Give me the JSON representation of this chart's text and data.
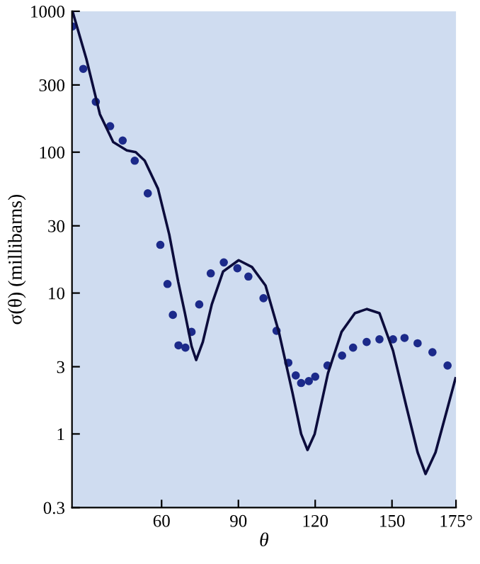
{
  "chart_data": {
    "type": "scatter",
    "xlabel": "θ",
    "ylabel": "σ(θ) (millibarns)",
    "log": "y",
    "grid": false,
    "legend": false,
    "xlim": [
      25,
      175
    ],
    "xticks": [
      60,
      90,
      120,
      150,
      {
        "value": 175,
        "label": "175°"
      }
    ],
    "ylim": [
      0.3,
      1000
    ],
    "yticks": [
      0.3,
      1,
      3,
      10,
      30,
      100,
      300,
      1000
    ],
    "series": [
      {
        "marker": "circle",
        "color": "#1c2a8a",
        "x": [
          25.1,
          29.4,
          34.3,
          39.9,
          44.8,
          49.5,
          54.6,
          59.5,
          62.3,
          64.4,
          66.6,
          69.3,
          71.7,
          74.7,
          79.2,
          84.3,
          89.6,
          93.9,
          99.8,
          104.9,
          109.5,
          112.4,
          114.5,
          117.5,
          120,
          124.8,
          130.5,
          134.8,
          140.1,
          145.1,
          150.4,
          154.9,
          160,
          165.8,
          171.7
        ],
        "values": [
          780,
          390,
          228,
          153,
          121,
          87,
          51,
          22,
          11.6,
          7.0,
          4.25,
          4.1,
          5.3,
          8.3,
          13.8,
          16.5,
          15,
          13.1,
          9.2,
          5.4,
          3.2,
          2.6,
          2.3,
          2.37,
          2.55,
          3.06,
          3.6,
          4.1,
          4.5,
          4.7,
          4.7,
          4.8,
          4.4,
          3.8,
          3.06
        ]
      },
      {
        "type": "line",
        "marker": "none",
        "line_style": "solid",
        "color": "#0c0c3c",
        "x": [
          25.2,
          30.6,
          35.9,
          41.1,
          46.4,
          49.9,
          53.4,
          58.6,
          63,
          66.5,
          69.1,
          71.7,
          73.5,
          76.1,
          79.6,
          84,
          90.1,
          95.3,
          100.6,
          105.8,
          111.1,
          114.5,
          117,
          119.8,
          125,
          130.3,
          135.5,
          140.2,
          145.1,
          150.4,
          155.6,
          160,
          163.1,
          167,
          171.4,
          174.8
        ],
        "values": [
          1000,
          460,
          186,
          118,
          103,
          100,
          87,
          55,
          26,
          12,
          7.2,
          4.2,
          3.35,
          4.5,
          8.3,
          14.2,
          17.1,
          15.3,
          11.3,
          5.3,
          1.97,
          1.0,
          0.77,
          1.0,
          2.7,
          5.3,
          7.2,
          7.7,
          7.2,
          3.9,
          1.57,
          0.74,
          0.52,
          0.74,
          1.46,
          2.48
        ]
      }
    ]
  }
}
